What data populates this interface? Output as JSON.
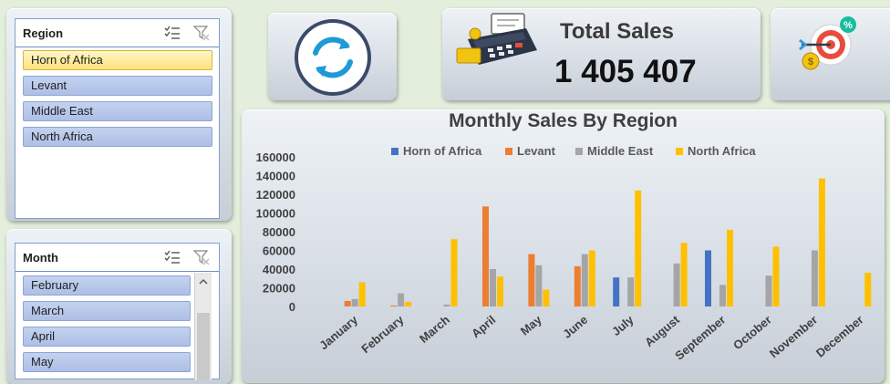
{
  "region_slicer": {
    "title": "Region",
    "items": [
      "Horn of Africa",
      "Levant",
      "Middle East",
      "North Africa"
    ],
    "selected_index": 0
  },
  "month_slicer": {
    "title": "Month",
    "items": [
      "February",
      "March",
      "April",
      "May"
    ]
  },
  "refresh_button": {
    "icon": "refresh-icon"
  },
  "sales_card": {
    "icon": "card-terminal-icon",
    "label": "Total Sales",
    "value": "1 405 407"
  },
  "target_card": {
    "icon": "target-icon"
  },
  "chart_data": {
    "type": "bar",
    "title": "Monthly Sales By Region",
    "categories": [
      "January",
      "February",
      "March",
      "April",
      "May",
      "June",
      "July",
      "August",
      "September",
      "October",
      "November",
      "December"
    ],
    "series": [
      {
        "name": "Horn of Africa",
        "color": "#4472c4",
        "values": [
          0,
          0,
          0,
          0,
          0,
          0,
          31000,
          0,
          60000,
          0,
          0,
          0
        ]
      },
      {
        "name": "Levant",
        "color": "#ed7d31",
        "values": [
          6000,
          1000,
          0,
          107000,
          56000,
          43000,
          0,
          0,
          0,
          0,
          0,
          0
        ]
      },
      {
        "name": "Middle East",
        "color": "#a5a5a5",
        "values": [
          8000,
          14000,
          2000,
          40000,
          44000,
          56000,
          31000,
          46000,
          23000,
          33000,
          60000,
          0
        ]
      },
      {
        "name": "North Africa",
        "color": "#ffc000",
        "values": [
          26000,
          5000,
          72000,
          32000,
          18000,
          60000,
          124000,
          68000,
          82000,
          64000,
          137000,
          36000
        ]
      }
    ],
    "yticks": [
      "0",
      "20000",
      "40000",
      "60000",
      "80000",
      "100000",
      "120000",
      "140000",
      "160000"
    ],
    "ylim": [
      0,
      160000
    ],
    "legend_position": "top",
    "grid": false
  }
}
